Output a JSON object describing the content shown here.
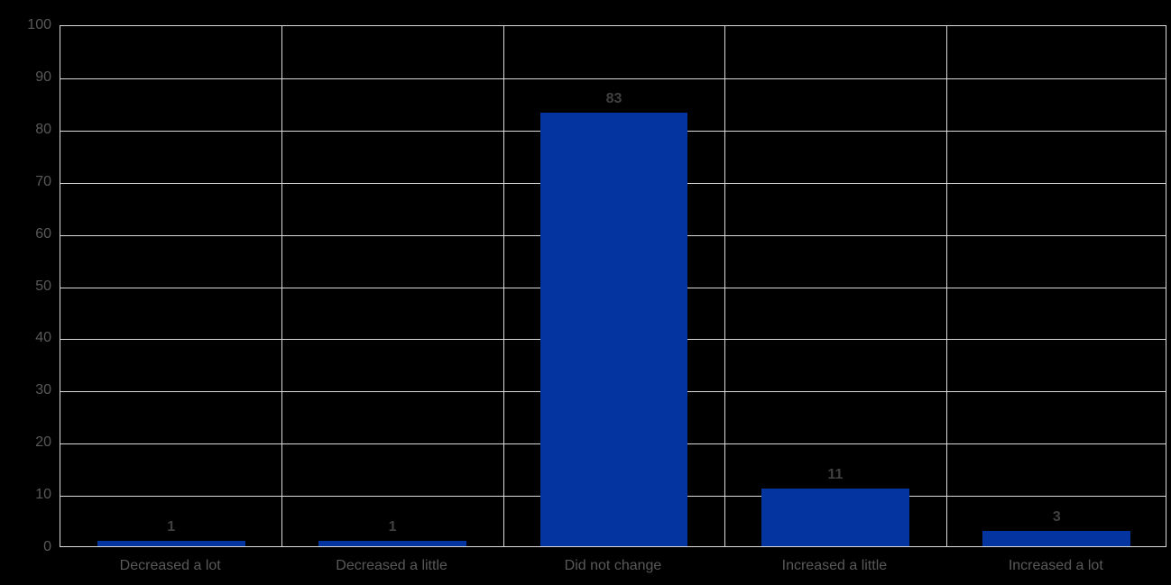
{
  "chart_data": {
    "type": "bar",
    "categories": [
      "Decreased a lot",
      "Decreased a little",
      "Did not change",
      "Increased a little",
      "Increased a lot"
    ],
    "values": [
      1,
      1,
      83,
      11,
      3
    ],
    "data_labels": [
      "1",
      "1",
      "83",
      "11",
      "3"
    ],
    "title": "",
    "xlabel": "",
    "ylabel": "",
    "ylim": [
      0,
      100
    ],
    "yticks": [
      0,
      10,
      20,
      30,
      40,
      50,
      60,
      70,
      80,
      90,
      100
    ],
    "grid": true,
    "legend": "none",
    "colors": {
      "background": "#000000",
      "bar": "#0434A0",
      "gridline": "#DADADA",
      "axis_label": "#595959",
      "data_label": "#404040"
    }
  }
}
